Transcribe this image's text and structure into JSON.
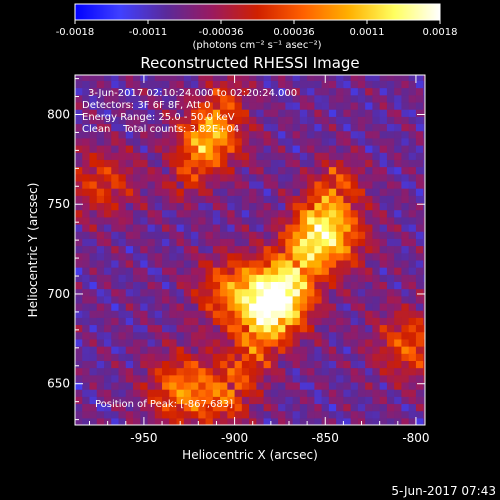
{
  "colorbar": {
    "ticks": [
      "-0.0018",
      "-0.0011",
      "-0.00036",
      "0.00036",
      "0.0011",
      "0.0018"
    ],
    "units": "(photons cm⁻² s⁻¹ asec⁻²)",
    "stops": [
      "#0000ff",
      "#4040ff",
      "#5a2a9a",
      "#9a1a60",
      "#d02000",
      "#ff6000",
      "#ffb000",
      "#ffff60",
      "#ffffff"
    ]
  },
  "chart_data": {
    "type": "heatmap",
    "title": "Reconstructed RHESSI Image",
    "xlabel": "Heliocentric X (arcsec)",
    "ylabel": "Heliocentric Y (arcsec)",
    "xlim": [
      -988,
      -795
    ],
    "ylim": [
      627,
      822
    ],
    "x_ticks": [
      -950,
      -900,
      -850,
      -800
    ],
    "y_ticks": [
      650,
      700,
      750,
      800
    ],
    "clim": [
      -0.0018,
      0.0018
    ],
    "colorbar_ticks": [
      -0.0018,
      -0.0011,
      -0.00036,
      0.00036,
      0.0011,
      0.0018
    ],
    "sources": [
      {
        "x": -880,
        "y": 695,
        "relative_peak": 1.0
      },
      {
        "x": -850,
        "y": 730,
        "relative_peak": 0.8
      },
      {
        "x": -905,
        "y": 700,
        "relative_peak": 0.55
      },
      {
        "x": -915,
        "y": 785,
        "relative_peak": 0.6
      },
      {
        "x": -930,
        "y": 645,
        "relative_peak": 0.7
      },
      {
        "x": -805,
        "y": 670,
        "relative_peak": 0.55
      },
      {
        "x": -975,
        "y": 760,
        "relative_peak": 0.45
      }
    ]
  },
  "annotations": {
    "time_range": "3-Jun-2017 02:10:24.000 to 02:20:24.000",
    "detectors": "Detectors: 3F 6F 8F, Att 0",
    "energy": "Energy Range: 25.0 - 50.0 keV",
    "method": "Clean    Total counts: 3.82E+04",
    "position": "Position of Peak: [-867,683]"
  },
  "footer_timestamp": "5-Jun-2017 07:43"
}
